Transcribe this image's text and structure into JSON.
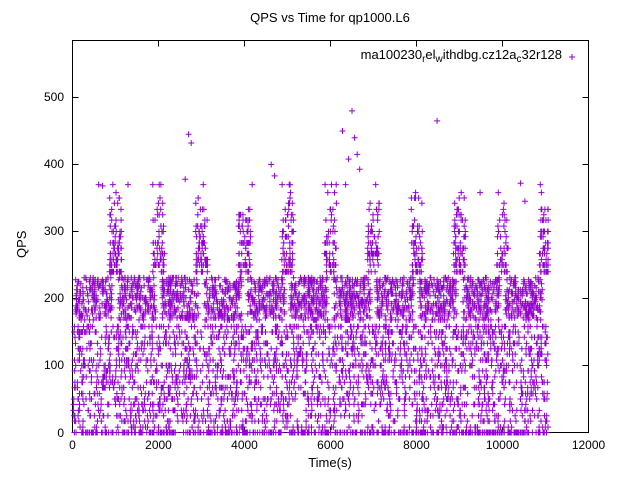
{
  "chart_data": {
    "type": "scatter",
    "title": "QPS vs Time for qp1000.L6",
    "xlabel": "Time(s)",
    "ylabel": "QPS",
    "xlim": [
      0,
      12000
    ],
    "ylim": [
      0,
      585
    ],
    "xticks": [
      "0",
      "2000",
      "4000",
      "6000",
      "8000",
      "10000",
      "12000"
    ],
    "ytick_values": [
      0,
      100,
      200,
      300,
      400,
      500
    ],
    "yticks": [
      "0",
      "100",
      "200",
      "300",
      "400",
      "500"
    ],
    "grid": false,
    "marker": "plus",
    "marker_color": "#9400d3",
    "legend": {
      "position": "top-right-inside",
      "label_plain": "ma100230_rel_withdbg.cz12a_c32r128",
      "label_segments": [
        {
          "text": "ma100230",
          "sub": false
        },
        {
          "text": "r",
          "sub": true
        },
        {
          "text": "el",
          "sub": false
        },
        {
          "text": "w",
          "sub": true
        },
        {
          "text": "ithdbg.cz12a",
          "sub": false
        },
        {
          "text": "c",
          "sub": true
        },
        {
          "text": "32r128",
          "sub": false
        }
      ]
    },
    "x_data_range": [
      0,
      11060
    ],
    "pattern": {
      "cycle_period_s": 1000,
      "cycles": 11,
      "description": "Dense QPS block ~170-230 during each ~1000s cycle with dips/spikes at cycle boundaries; quantized low-QPS lines span full width; occasional spikes to 340-480."
    },
    "bands": [
      {
        "qps": 0,
        "count": 420,
        "x_mode": "uniform"
      },
      {
        "qps": 8,
        "count": 90,
        "x_mode": "uniform"
      },
      {
        "qps": 17,
        "count": 100,
        "x_mode": "uniform"
      },
      {
        "qps": 25,
        "count": 110,
        "x_mode": "uniform"
      },
      {
        "qps": 33,
        "count": 100,
        "x_mode": "uniform"
      },
      {
        "qps": 42,
        "count": 110,
        "x_mode": "uniform"
      },
      {
        "qps": 50,
        "count": 130,
        "x_mode": "uniform"
      },
      {
        "qps": 58,
        "count": 110,
        "x_mode": "uniform"
      },
      {
        "qps": 67,
        "count": 120,
        "x_mode": "uniform"
      },
      {
        "qps": 75,
        "count": 130,
        "x_mode": "uniform"
      },
      {
        "qps": 83,
        "count": 115,
        "x_mode": "uniform"
      },
      {
        "qps": 92,
        "count": 120,
        "x_mode": "uniform"
      },
      {
        "qps": 100,
        "count": 150,
        "x_mode": "uniform"
      },
      {
        "qps": 108,
        "count": 130,
        "x_mode": "uniform"
      },
      {
        "qps": 117,
        "count": 130,
        "x_mode": "uniform"
      },
      {
        "qps": 125,
        "count": 140,
        "x_mode": "uniform"
      },
      {
        "qps": 133,
        "count": 135,
        "x_mode": "uniform"
      },
      {
        "qps": 142,
        "count": 145,
        "x_mode": "uniform"
      },
      {
        "qps": 150,
        "count": 160,
        "x_mode": "uniform"
      },
      {
        "qps": 158,
        "count": 150,
        "x_mode": "uniform"
      },
      {
        "qps_min": 168,
        "qps_max": 232,
        "count": 1900,
        "x_mode": "cycle_block"
      },
      {
        "qps": 240,
        "count": 90,
        "x_mode": "boundary"
      },
      {
        "qps": 250,
        "count": 110,
        "x_mode": "boundary"
      },
      {
        "qps": 258,
        "count": 70,
        "x_mode": "boundary"
      },
      {
        "qps": 267,
        "count": 85,
        "x_mode": "boundary"
      },
      {
        "qps": 275,
        "count": 60,
        "x_mode": "boundary"
      },
      {
        "qps": 283,
        "count": 70,
        "x_mode": "boundary"
      },
      {
        "qps": 292,
        "count": 40,
        "x_mode": "boundary"
      },
      {
        "qps": 300,
        "count": 55,
        "x_mode": "boundary"
      },
      {
        "qps": 308,
        "count": 35,
        "x_mode": "boundary"
      },
      {
        "qps": 317,
        "count": 40,
        "x_mode": "boundary"
      },
      {
        "qps": 325,
        "count": 25,
        "x_mode": "boundary"
      },
      {
        "qps": 333,
        "count": 30,
        "x_mode": "boundary"
      },
      {
        "qps": 342,
        "count": 16,
        "x_mode": "boundary"
      },
      {
        "qps": 350,
        "count": 12,
        "x_mode": "boundary"
      },
      {
        "qps": 358,
        "count": 8,
        "x_mode": "boundary"
      },
      {
        "qps": 370,
        "count": 10,
        "x_mode": "boundary"
      }
    ],
    "outlier_points": [
      [
        610,
        370
      ],
      [
        700,
        368
      ],
      [
        1290,
        370
      ],
      [
        2620,
        378
      ],
      [
        2700,
        445
      ],
      [
        2760,
        432
      ],
      [
        4180,
        370
      ],
      [
        4620,
        400
      ],
      [
        4700,
        383
      ],
      [
        5060,
        370
      ],
      [
        6280,
        450
      ],
      [
        6350,
        370
      ],
      [
        6420,
        408
      ],
      [
        6500,
        480
      ],
      [
        6560,
        440
      ],
      [
        6620,
        415
      ],
      [
        6680,
        393
      ],
      [
        7050,
        370
      ],
      [
        8480,
        465
      ],
      [
        9480,
        358
      ],
      [
        10420,
        372
      ],
      [
        10520,
        345
      ],
      [
        10880,
        370
      ]
    ]
  }
}
